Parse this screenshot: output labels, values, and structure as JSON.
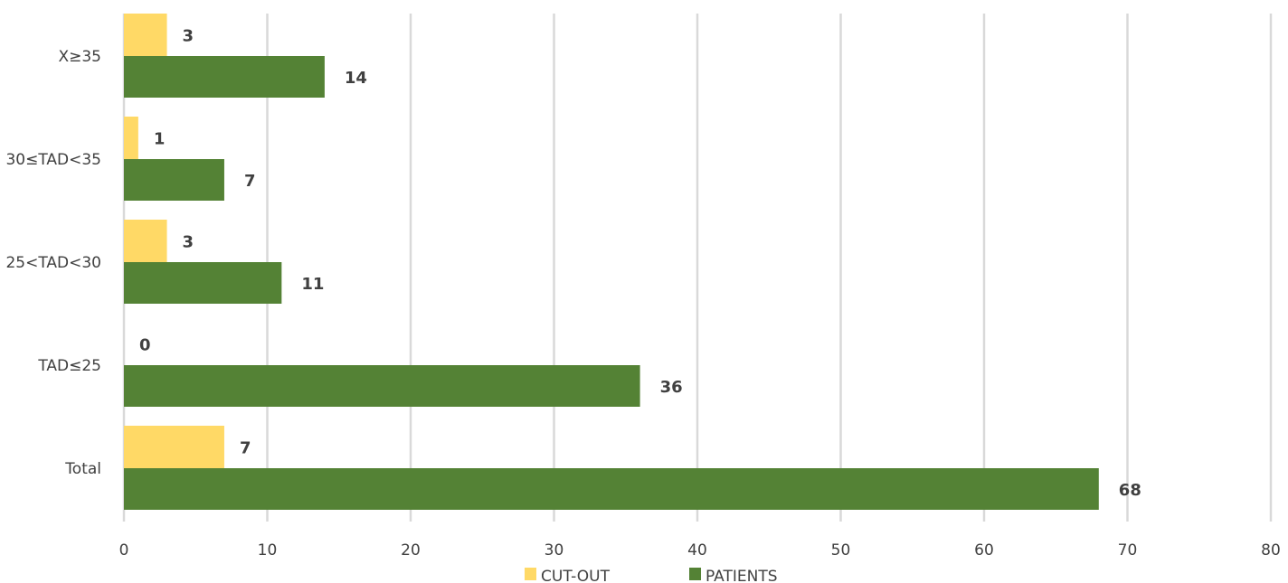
{
  "chart_data": {
    "type": "bar",
    "orientation": "horizontal",
    "categories": [
      "X≥35",
      "30≤TAD<35",
      "25<TAD<30",
      "TAD≤25",
      "Total"
    ],
    "series": [
      {
        "name": "CUT-OUT",
        "color": "#FFD966",
        "values": [
          3,
          1,
          3,
          0,
          7
        ]
      },
      {
        "name": "PATIENTS",
        "color": "#548235",
        "values": [
          14,
          7,
          11,
          36,
          68
        ]
      }
    ],
    "xlim": [
      0,
      80
    ],
    "xticks": [
      0,
      10,
      20,
      30,
      40,
      50,
      60,
      70,
      80
    ],
    "grid": true,
    "data_labels": true,
    "legend": "bottom",
    "title": "",
    "xlabel": "",
    "ylabel": ""
  }
}
